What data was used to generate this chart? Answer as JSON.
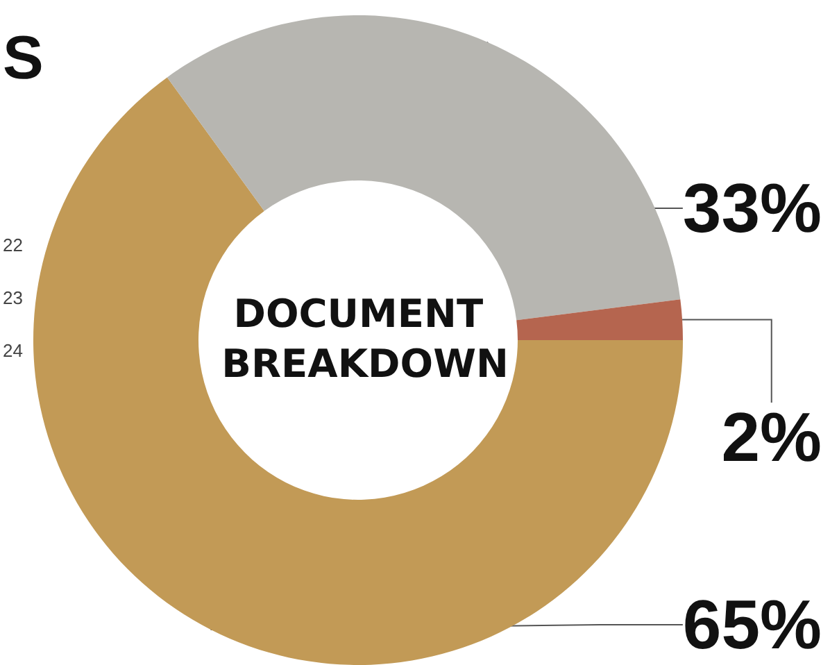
{
  "chart_data": {
    "type": "donut",
    "title": "DOCUMENT BREAKDOWN",
    "categories": [
      null,
      null,
      null
    ],
    "values": [
      65,
      33,
      2
    ],
    "colors": [
      "#c29a56",
      "#b7b6b1",
      "#b5654f"
    ],
    "value_labels": [
      "65%",
      "33%",
      "2%"
    ],
    "annotations": [
      "S",
      "22",
      "23",
      "24"
    ]
  }
}
